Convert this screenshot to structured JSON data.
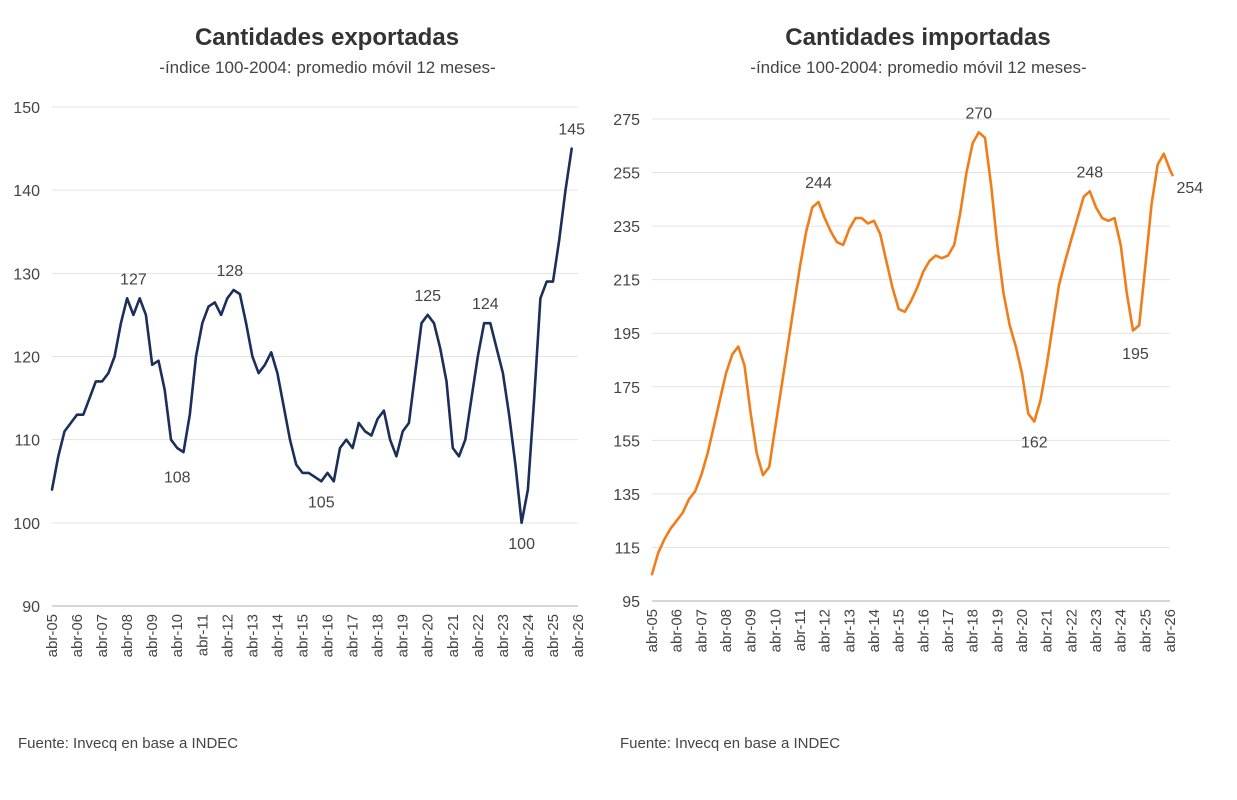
{
  "source_text": "Fuente: Invecq en base a INDEC",
  "chart_data": [
    {
      "type": "line",
      "title": "Cantidades exportadas",
      "subtitle": "-índice 100-2004: promedio móvil 12 meses-",
      "xlabel": "",
      "ylabel": "",
      "ylim": [
        90,
        150
      ],
      "yticks": [
        90,
        100,
        110,
        120,
        130,
        140,
        150
      ],
      "xticks": [
        "abr-05",
        "abr-06",
        "abr-07",
        "abr-08",
        "abr-09",
        "abr-10",
        "abr-11",
        "abr-12",
        "abr-13",
        "abr-14",
        "abr-15",
        "abr-16",
        "abr-17",
        "abr-18",
        "abr-19",
        "abr-20",
        "abr-21",
        "abr-22",
        "abr-23",
        "abr-24",
        "abr-25",
        "abr-26"
      ],
      "grid": true,
      "color": "#1b2f5a",
      "series": [
        {
          "points": [
            [
              2005.0,
              104
            ],
            [
              2005.25,
              108
            ],
            [
              2005.5,
              111
            ],
            [
              2005.75,
              112
            ],
            [
              2006.0,
              113
            ],
            [
              2006.25,
              113
            ],
            [
              2006.5,
              115
            ],
            [
              2006.75,
              117
            ],
            [
              2007.0,
              117
            ],
            [
              2007.25,
              118
            ],
            [
              2007.5,
              120
            ],
            [
              2007.75,
              124
            ],
            [
              2008.0,
              127
            ],
            [
              2008.25,
              125
            ],
            [
              2008.5,
              127
            ],
            [
              2008.75,
              125
            ],
            [
              2009.0,
              119
            ],
            [
              2009.25,
              119.5
            ],
            [
              2009.5,
              116
            ],
            [
              2009.75,
              110
            ],
            [
              2010.0,
              109
            ],
            [
              2010.25,
              108.5
            ],
            [
              2010.5,
              113
            ],
            [
              2010.75,
              120
            ],
            [
              2011.0,
              124
            ],
            [
              2011.25,
              126
            ],
            [
              2011.5,
              126.5
            ],
            [
              2011.75,
              125
            ],
            [
              2012.0,
              127
            ],
            [
              2012.25,
              128
            ],
            [
              2012.5,
              127.5
            ],
            [
              2012.75,
              124
            ],
            [
              2013.0,
              120
            ],
            [
              2013.25,
              118
            ],
            [
              2013.5,
              119
            ],
            [
              2013.75,
              120.5
            ],
            [
              2014.0,
              118
            ],
            [
              2014.25,
              114
            ],
            [
              2014.5,
              110
            ],
            [
              2014.75,
              107
            ],
            [
              2015.0,
              106
            ],
            [
              2015.25,
              106
            ],
            [
              2015.5,
              105.5
            ],
            [
              2015.75,
              105
            ],
            [
              2016.0,
              106
            ],
            [
              2016.25,
              105
            ],
            [
              2016.5,
              109
            ],
            [
              2016.75,
              110
            ],
            [
              2017.0,
              109
            ],
            [
              2017.25,
              112
            ],
            [
              2017.5,
              111
            ],
            [
              2017.75,
              110.5
            ],
            [
              2018.0,
              112.5
            ],
            [
              2018.25,
              113.5
            ],
            [
              2018.5,
              110
            ],
            [
              2018.75,
              108
            ],
            [
              2019.0,
              111
            ],
            [
              2019.25,
              112
            ],
            [
              2019.5,
              118
            ],
            [
              2019.75,
              124
            ],
            [
              2020.0,
              125
            ],
            [
              2020.25,
              124
            ],
            [
              2020.5,
              121
            ],
            [
              2020.75,
              117
            ],
            [
              2021.0,
              109
            ],
            [
              2021.25,
              108
            ],
            [
              2021.5,
              110
            ],
            [
              2021.75,
              115
            ],
            [
              2022.0,
              120
            ],
            [
              2022.25,
              124
            ],
            [
              2022.5,
              124
            ],
            [
              2022.75,
              121
            ],
            [
              2023.0,
              118
            ],
            [
              2023.25,
              113
            ],
            [
              2023.5,
              107
            ],
            [
              2023.75,
              100
            ],
            [
              2024.0,
              104
            ],
            [
              2024.25,
              115
            ],
            [
              2024.5,
              127
            ],
            [
              2024.75,
              129
            ],
            [
              2025.0,
              129
            ],
            [
              2025.25,
              134
            ],
            [
              2025.5,
              140
            ],
            [
              2025.75,
              145
            ]
          ]
        }
      ],
      "annotations": [
        {
          "x": 2008.25,
          "y": 127,
          "text": "127",
          "pos": "above"
        },
        {
          "x": 2012.1,
          "y": 128,
          "text": "128",
          "pos": "above"
        },
        {
          "x": 2010.0,
          "y": 108,
          "text": "108",
          "pos": "below"
        },
        {
          "x": 2015.75,
          "y": 105,
          "text": "105",
          "pos": "below"
        },
        {
          "x": 2020.0,
          "y": 125,
          "text": "125",
          "pos": "above"
        },
        {
          "x": 2022.3,
          "y": 124,
          "text": "124",
          "pos": "above"
        },
        {
          "x": 2023.75,
          "y": 100,
          "text": "100",
          "pos": "below"
        },
        {
          "x": 2025.75,
          "y": 145,
          "text": "145",
          "pos": "above"
        }
      ]
    },
    {
      "type": "line",
      "title": "Cantidades importadas",
      "subtitle": "-índice 100-2004: promedio móvil 12 meses-",
      "xlabel": "",
      "ylabel": "",
      "ylim": [
        95,
        275
      ],
      "yticks": [
        95,
        115,
        135,
        155,
        175,
        195,
        215,
        235,
        255,
        275
      ],
      "xticks": [
        "abr-05",
        "abr-06",
        "abr-07",
        "abr-08",
        "abr-09",
        "abr-10",
        "abr-11",
        "abr-12",
        "abr-13",
        "abr-14",
        "abr-15",
        "abr-16",
        "abr-17",
        "abr-18",
        "abr-19",
        "abr-20",
        "abr-21",
        "abr-22",
        "abr-23",
        "abr-24",
        "abr-25",
        "abr-26"
      ],
      "grid": true,
      "color": "#f07d1a",
      "series": [
        {
          "points": [
            [
              2005.0,
              105
            ],
            [
              2005.25,
              113
            ],
            [
              2005.5,
              118
            ],
            [
              2005.75,
              122
            ],
            [
              2006.0,
              125
            ],
            [
              2006.25,
              128
            ],
            [
              2006.5,
              133
            ],
            [
              2006.75,
              136
            ],
            [
              2007.0,
              142
            ],
            [
              2007.25,
              150
            ],
            [
              2007.5,
              160
            ],
            [
              2007.75,
              170
            ],
            [
              2008.0,
              180
            ],
            [
              2008.25,
              187
            ],
            [
              2008.5,
              190
            ],
            [
              2008.75,
              183
            ],
            [
              2009.0,
              165
            ],
            [
              2009.25,
              150
            ],
            [
              2009.5,
              142
            ],
            [
              2009.75,
              145
            ],
            [
              2010.0,
              160
            ],
            [
              2010.25,
              175
            ],
            [
              2010.5,
              190
            ],
            [
              2010.75,
              205
            ],
            [
              2011.0,
              220
            ],
            [
              2011.25,
              233
            ],
            [
              2011.5,
              242
            ],
            [
              2011.75,
              244
            ],
            [
              2012.0,
              238
            ],
            [
              2012.25,
              233
            ],
            [
              2012.5,
              229
            ],
            [
              2012.75,
              228
            ],
            [
              2013.0,
              234
            ],
            [
              2013.25,
              238
            ],
            [
              2013.5,
              238
            ],
            [
              2013.75,
              236
            ],
            [
              2014.0,
              237
            ],
            [
              2014.25,
              232
            ],
            [
              2014.5,
              222
            ],
            [
              2014.75,
              212
            ],
            [
              2015.0,
              204
            ],
            [
              2015.25,
              203
            ],
            [
              2015.5,
              207
            ],
            [
              2015.75,
              212
            ],
            [
              2016.0,
              218
            ],
            [
              2016.25,
              222
            ],
            [
              2016.5,
              224
            ],
            [
              2016.75,
              223
            ],
            [
              2017.0,
              224
            ],
            [
              2017.25,
              228
            ],
            [
              2017.5,
              240
            ],
            [
              2017.75,
              255
            ],
            [
              2018.0,
              266
            ],
            [
              2018.25,
              270
            ],
            [
              2018.5,
              268
            ],
            [
              2018.75,
              250
            ],
            [
              2019.0,
              228
            ],
            [
              2019.25,
              210
            ],
            [
              2019.5,
              198
            ],
            [
              2019.75,
              190
            ],
            [
              2020.0,
              180
            ],
            [
              2020.25,
              165
            ],
            [
              2020.5,
              162
            ],
            [
              2020.75,
              170
            ],
            [
              2021.0,
              183
            ],
            [
              2021.25,
              198
            ],
            [
              2021.5,
              213
            ],
            [
              2021.75,
              222
            ],
            [
              2022.0,
              230
            ],
            [
              2022.25,
              238
            ],
            [
              2022.5,
              246
            ],
            [
              2022.75,
              248
            ],
            [
              2023.0,
              242
            ],
            [
              2023.25,
              238
            ],
            [
              2023.5,
              237
            ],
            [
              2023.75,
              238
            ],
            [
              2024.0,
              228
            ],
            [
              2024.25,
              210
            ],
            [
              2024.5,
              196
            ],
            [
              2024.75,
              198
            ],
            [
              2025.0,
              220
            ],
            [
              2025.25,
              243
            ],
            [
              2025.5,
              258
            ],
            [
              2025.75,
              262
            ],
            [
              2026.0,
              256
            ],
            [
              2026.1,
              254
            ]
          ]
        }
      ],
      "annotations": [
        {
          "x": 2011.75,
          "y": 244,
          "text": "244",
          "pos": "above"
        },
        {
          "x": 2018.25,
          "y": 270,
          "text": "270",
          "pos": "above"
        },
        {
          "x": 2022.75,
          "y": 248,
          "text": "248",
          "pos": "above"
        },
        {
          "x": 2020.5,
          "y": 162,
          "text": "162",
          "pos": "below"
        },
        {
          "x": 2024.6,
          "y": 195,
          "text": "195",
          "pos": "below"
        },
        {
          "x": 2026.1,
          "y": 254,
          "text": "254",
          "pos": "right"
        }
      ]
    }
  ]
}
